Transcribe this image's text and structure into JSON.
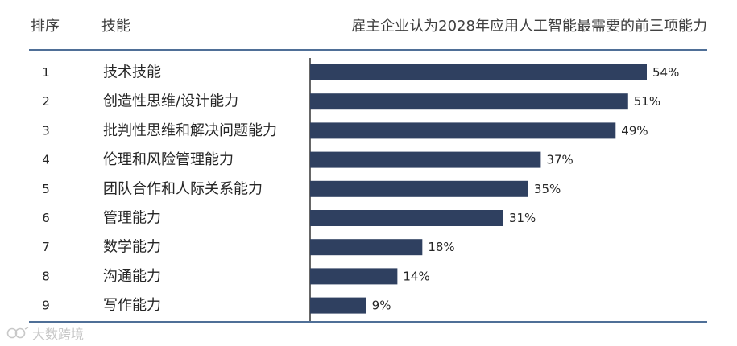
{
  "header": {
    "rank_label": "排序",
    "skill_label": "技能",
    "title": "雇主企业认为2028年应用人工智能最需要的前三项能力"
  },
  "watermark": {
    "text": "大数跨境"
  },
  "colors": {
    "bar": "#2f4060",
    "rule": "#4f6f97",
    "axis": "#000000"
  },
  "chart_data": {
    "type": "bar",
    "orientation": "horizontal",
    "ranks": [
      "1",
      "2",
      "3",
      "4",
      "5",
      "6",
      "7",
      "8",
      "9"
    ],
    "categories": [
      "技术技能",
      "创造性思维/设计能力",
      "批判性思维和解决问题能力",
      "伦理和风险管理能力",
      "团队合作和人际关系能力",
      "管理能力",
      "数学能力",
      "沟通能力",
      "写作能力"
    ],
    "values": [
      54,
      51,
      49,
      37,
      35,
      31,
      18,
      14,
      9
    ],
    "value_labels": [
      "54%",
      "51%",
      "49%",
      "37%",
      "35%",
      "31%",
      "18%",
      "14%",
      "9%"
    ],
    "unit": "%",
    "xlim": [
      0,
      54
    ],
    "grid": false,
    "legend": "none"
  }
}
